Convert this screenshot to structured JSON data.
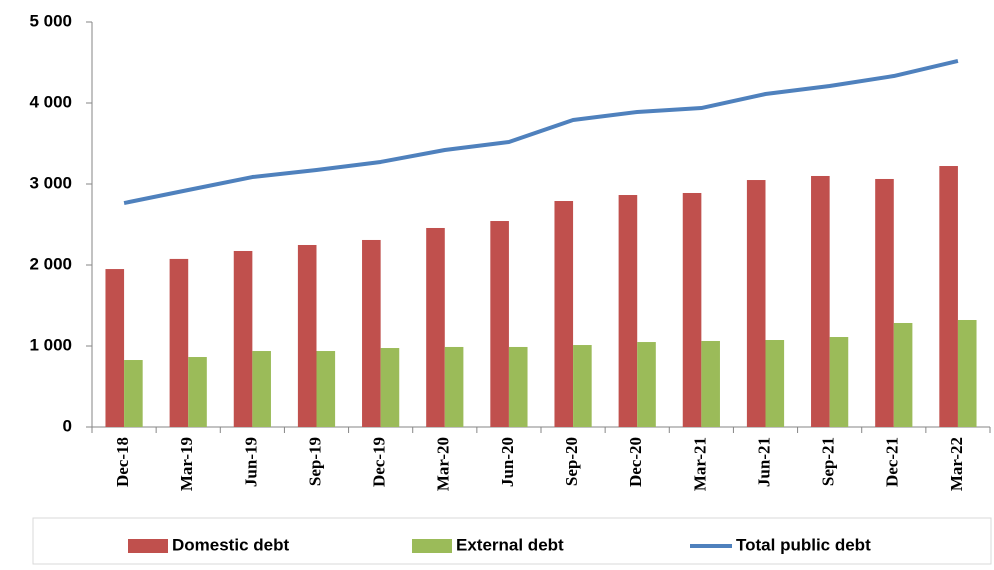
{
  "chart_data": {
    "type": "bar",
    "categories": [
      "Dec-18",
      "Mar-19",
      "Jun-19",
      "Sep-19",
      "Dec-19",
      "Mar-20",
      "Jun-20",
      "Sep-20",
      "Dec-20",
      "Mar-21",
      "Jun-21",
      "Sep-21",
      "Dec-21",
      "Mar-22"
    ],
    "series": [
      {
        "name": "Domestic debt",
        "type": "bar",
        "color": "#c0504d",
        "values": [
          1950,
          2075,
          2173,
          2247,
          2309,
          2457,
          2543,
          2790,
          2864,
          2889,
          3049,
          3099,
          3062,
          3222
        ]
      },
      {
        "name": "External debt",
        "type": "bar",
        "color": "#9bbb59",
        "values": [
          827,
          864,
          938,
          938,
          975,
          988,
          988,
          1012,
          1049,
          1062,
          1074,
          1111,
          1284,
          1321
        ]
      },
      {
        "name": "Total public debt",
        "type": "line",
        "color": "#4f81bd",
        "values": [
          2765,
          2926,
          3086,
          3173,
          3272,
          3420,
          3519,
          3790,
          3889,
          3938,
          4111,
          4210,
          4333,
          4519
        ]
      }
    ],
    "ylim": [
      0,
      5000
    ],
    "yticks": [
      0,
      {
        "value": 1000,
        "label": "1 000"
      },
      {
        "value": 2000,
        "label": "2 000"
      },
      {
        "value": 3000,
        "label": "3 000"
      },
      {
        "value": 4000,
        "label": "4 000"
      },
      {
        "value": 5000,
        "label": "5 000"
      }
    ],
    "legend": "bottom"
  }
}
